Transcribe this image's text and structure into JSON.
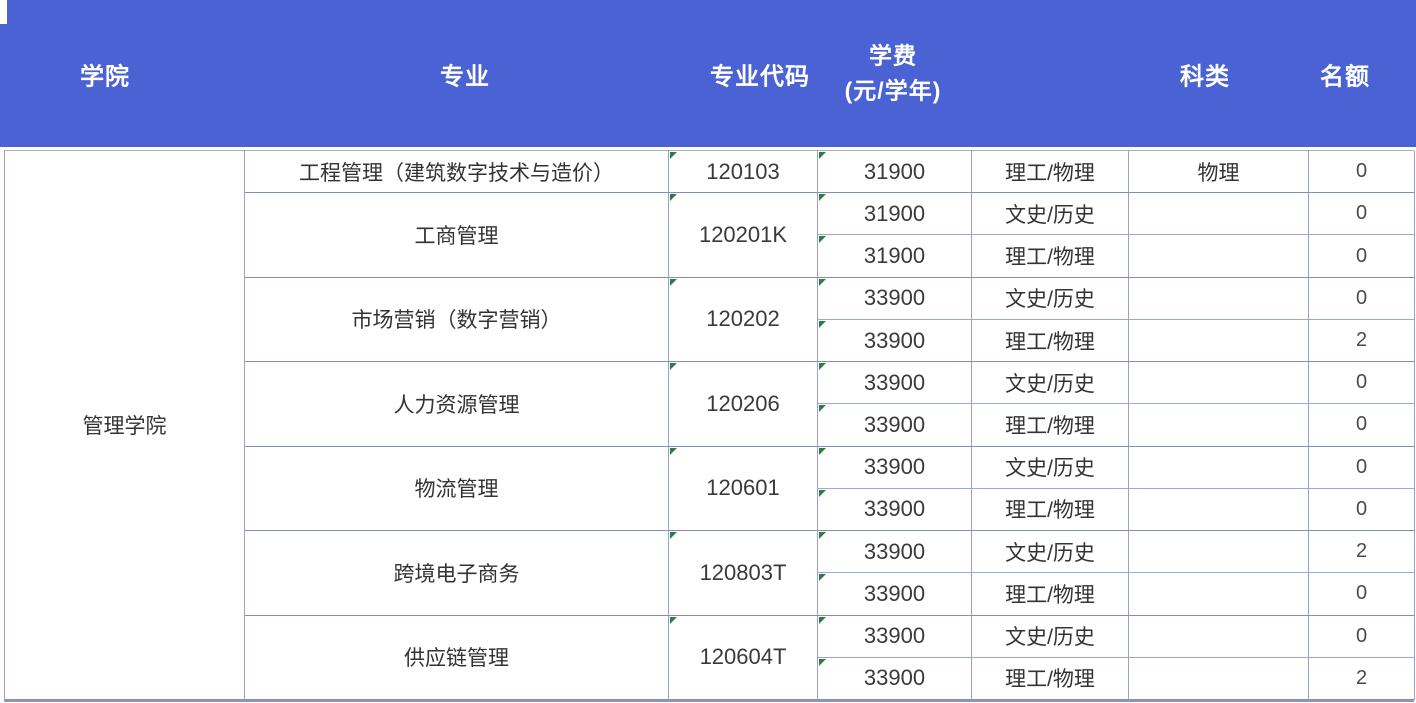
{
  "colors": {
    "header_bg": "#4a62d4",
    "header_text": "#ffffff",
    "grid_line": "#97a0d0",
    "group_line": "#848ead",
    "body_text": "#333333",
    "indicator_green": "#2e7d43"
  },
  "table": {
    "headers": {
      "college": "学院",
      "major": "专业",
      "major_code": "专业代码",
      "tuition_line1": "学费",
      "tuition_line2": "(元/学年)",
      "category": "科类",
      "quota": "名额"
    },
    "college": "管理学院",
    "groups": [
      {
        "major": "工程管理（建筑数字技术与造价）",
        "code": "120103",
        "rows": [
          {
            "tuition": "31900",
            "category_a": "理工/物理",
            "category_b": "物理",
            "quota": "0"
          }
        ]
      },
      {
        "major": "工商管理",
        "code": "120201K",
        "rows": [
          {
            "tuition": "31900",
            "category_a": "文史/历史",
            "category_b": "",
            "quota": "0"
          },
          {
            "tuition": "31900",
            "category_a": "理工/物理",
            "category_b": "",
            "quota": "0"
          }
        ]
      },
      {
        "major": "市场营销（数字营销）",
        "code": "120202",
        "rows": [
          {
            "tuition": "33900",
            "category_a": "文史/历史",
            "category_b": "",
            "quota": "0"
          },
          {
            "tuition": "33900",
            "category_a": "理工/物理",
            "category_b": "",
            "quota": "2"
          }
        ]
      },
      {
        "major": "人力资源管理",
        "code": "120206",
        "rows": [
          {
            "tuition": "33900",
            "category_a": "文史/历史",
            "category_b": "",
            "quota": "0"
          },
          {
            "tuition": "33900",
            "category_a": "理工/物理",
            "category_b": "",
            "quota": "0"
          }
        ]
      },
      {
        "major": "物流管理",
        "code": "120601",
        "rows": [
          {
            "tuition": "33900",
            "category_a": "文史/历史",
            "category_b": "",
            "quota": "0"
          },
          {
            "tuition": "33900",
            "category_a": "理工/物理",
            "category_b": "",
            "quota": "0"
          }
        ]
      },
      {
        "major": "跨境电子商务",
        "code": "120803T",
        "rows": [
          {
            "tuition": "33900",
            "category_a": "文史/历史",
            "category_b": "",
            "quota": "2"
          },
          {
            "tuition": "33900",
            "category_a": "理工/物理",
            "category_b": "",
            "quota": "0"
          }
        ]
      },
      {
        "major": "供应链管理",
        "code": "120604T",
        "rows": [
          {
            "tuition": "33900",
            "category_a": "文史/历史",
            "category_b": "",
            "quota": "0"
          },
          {
            "tuition": "33900",
            "category_a": "理工/物理",
            "category_b": "",
            "quota": "2"
          }
        ]
      }
    ]
  }
}
